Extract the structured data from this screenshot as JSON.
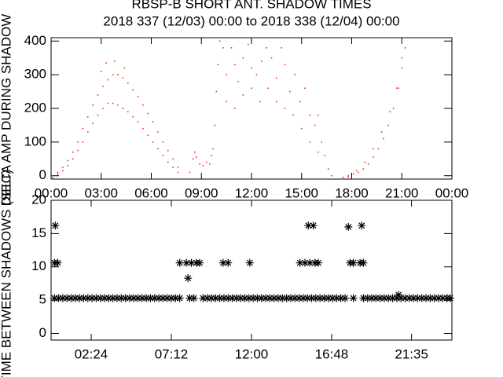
{
  "chart_data": [
    {
      "type": "scatter",
      "title": "RBSP-B SHORT ANT. SHADOW TIMES",
      "subtitle": "2018 337 (12/03) 00:00 to 2018 338 (12/04) 00:00",
      "y_label": "DELTA AMP DURING SHADOW",
      "color": "#e8321e",
      "xlim": [
        0,
        24
      ],
      "ylim": [
        -10,
        410
      ],
      "xticks": [
        {
          "value": 0,
          "label": "00:00"
        },
        {
          "value": 3,
          "label": "03:00"
        },
        {
          "value": 6,
          "label": "06:00"
        },
        {
          "value": 9,
          "label": "09:00"
        },
        {
          "value": 12,
          "label": "12:00"
        },
        {
          "value": 15,
          "label": "15:00"
        },
        {
          "value": 18,
          "label": "18:00"
        },
        {
          "value": 21,
          "label": "21:00"
        },
        {
          "value": 24,
          "label": "00:00"
        }
      ],
      "yticks": [
        0,
        100,
        200,
        300,
        400
      ],
      "x": [
        0.1,
        0.4,
        0.7,
        1.0,
        1.3,
        1.6,
        1.9,
        2.2,
        2.5,
        2.8,
        3.1,
        3.4,
        3.7,
        4.0,
        4.3,
        4.6,
        4.9,
        5.2,
        5.5,
        5.8,
        6.1,
        6.4,
        6.7,
        7.0,
        7.3,
        7.6,
        0.1,
        0.4,
        0.7,
        1.0,
        1.3,
        1.6,
        1.9,
        2.2,
        2.5,
        2.8,
        3.1,
        3.4,
        3.7,
        4.0,
        4.3,
        4.6,
        4.9,
        5.2,
        5.5,
        5.8,
        6.1,
        6.4,
        6.7,
        7.0,
        7.3,
        7.6,
        3.0,
        3.3,
        3.8,
        4.4,
        8.3,
        8.5,
        8.6,
        8.7,
        8.9,
        9.1,
        9.3,
        9.5,
        9.6,
        9.7,
        9.8,
        9.9,
        10.0,
        10.1,
        10.3,
        10.5,
        10.8,
        11.0,
        11.2,
        11.5,
        11.8,
        12.0,
        12.3,
        12.6,
        12.9,
        13.2,
        13.5,
        13.8,
        14.0,
        14.3,
        14.6,
        14.9,
        15.2,
        15.5,
        15.8,
        16.0,
        16.2,
        16.4,
        16.6,
        16.8,
        10.5,
        11.0,
        11.5,
        12.0,
        12.5,
        13.0,
        13.5,
        14.0,
        14.5,
        15.0,
        15.5,
        16.0,
        17.5,
        17.8,
        18.1,
        18.4,
        18.7,
        19.0,
        19.3,
        19.6,
        19.9,
        20.2,
        20.5,
        20.8,
        21.0,
        21.2,
        17.8,
        18.3,
        18.8,
        19.3,
        19.8,
        20.3,
        20.7,
        21.0
      ],
      "values": [
        -5,
        5,
        15,
        30,
        50,
        75,
        100,
        130,
        155,
        180,
        200,
        215,
        215,
        210,
        200,
        190,
        175,
        160,
        140,
        120,
        100,
        80,
        60,
        40,
        25,
        10,
        0,
        10,
        25,
        45,
        70,
        100,
        140,
        175,
        210,
        240,
        265,
        285,
        300,
        300,
        290,
        275,
        255,
        235,
        210,
        185,
        160,
        130,
        100,
        75,
        50,
        25,
        310,
        335,
        340,
        320,
        10,
        50,
        70,
        55,
        35,
        30,
        40,
        35,
        60,
        80,
        150,
        250,
        330,
        400,
        380,
        300,
        380,
        330,
        280,
        350,
        390,
        320,
        300,
        340,
        380,
        350,
        290,
        380,
        330,
        250,
        300,
        220,
        260,
        180,
        150,
        180,
        100,
        60,
        20,
        0,
        220,
        200,
        240,
        260,
        220,
        260,
        220,
        200,
        180,
        140,
        100,
        70,
        -5,
        0,
        5,
        10,
        20,
        35,
        55,
        80,
        110,
        150,
        200,
        260,
        320,
        380,
        -3,
        15,
        40,
        80,
        130,
        190,
        260,
        350
      ]
    },
    {
      "type": "asterisk",
      "y_label": "TIME BETWEEN SHADOWS (SEC)",
      "color": "#000000",
      "xlim": [
        0,
        24
      ],
      "ylim": [
        -1,
        20
      ],
      "xticks": [
        {
          "value": 2.4,
          "label": "02:24"
        },
        {
          "value": 7.2,
          "label": "07:12"
        },
        {
          "value": 12,
          "label": "12:00"
        },
        {
          "value": 16.8,
          "label": "16:48"
        },
        {
          "value": 21.583,
          "label": "21:35"
        }
      ],
      "yticks": [
        0,
        5,
        10,
        15,
        20
      ],
      "x": [
        0.2,
        0.45,
        0.7,
        0.95,
        1.2,
        1.45,
        1.7,
        1.95,
        2.2,
        2.45,
        2.7,
        2.95,
        3.2,
        3.45,
        3.7,
        3.95,
        4.2,
        4.45,
        4.7,
        4.95,
        5.2,
        5.45,
        5.7,
        5.95,
        6.2,
        6.45,
        6.7,
        6.95,
        7.2,
        7.45,
        7.7,
        8.3,
        8.55,
        9.1,
        9.35,
        9.6,
        9.85,
        10.1,
        10.35,
        10.6,
        10.85,
        11.1,
        11.35,
        11.6,
        11.85,
        12.1,
        12.35,
        12.6,
        12.85,
        13.1,
        13.35,
        13.6,
        13.85,
        14.1,
        14.35,
        14.6,
        14.85,
        15.1,
        15.35,
        15.6,
        15.85,
        16.1,
        16.35,
        16.6,
        16.85,
        17.1,
        17.35,
        17.6,
        18.1,
        18.7,
        18.95,
        19.2,
        19.45,
        19.7,
        19.95,
        20.2,
        20.45,
        20.7,
        20.95,
        21.2,
        21.45,
        21.7,
        21.95,
        22.2,
        22.45,
        22.7,
        22.95,
        23.2,
        23.45,
        23.7,
        23.9,
        0.2,
        0.4,
        0.25,
        7.7,
        8.2,
        8.1,
        8.4,
        8.7,
        8.9,
        10.3,
        10.6,
        11.9,
        14.9,
        15.2,
        15.4,
        15.5,
        15.7,
        15.8,
        16.0,
        17.8,
        17.9,
        18.1,
        18.6,
        18.5,
        18.7,
        20.8
      ],
      "values": [
        5.3,
        5.3,
        5.3,
        5.3,
        5.3,
        5.3,
        5.3,
        5.3,
        5.3,
        5.3,
        5.3,
        5.3,
        5.3,
        5.3,
        5.3,
        5.3,
        5.3,
        5.3,
        5.3,
        5.3,
        5.3,
        5.3,
        5.3,
        5.3,
        5.3,
        5.3,
        5.3,
        5.3,
        5.3,
        5.3,
        5.3,
        5.3,
        5.3,
        5.3,
        5.3,
        5.3,
        5.3,
        5.3,
        5.3,
        5.3,
        5.3,
        5.3,
        5.3,
        5.3,
        5.3,
        5.3,
        5.3,
        5.3,
        5.3,
        5.3,
        5.3,
        5.3,
        5.3,
        5.3,
        5.3,
        5.3,
        5.3,
        5.3,
        5.3,
        5.3,
        5.3,
        5.3,
        5.3,
        5.3,
        5.3,
        5.3,
        5.3,
        5.3,
        5.3,
        5.3,
        5.3,
        5.3,
        5.3,
        5.3,
        5.3,
        5.3,
        5.3,
        5.3,
        5.3,
        5.3,
        5.3,
        5.3,
        5.3,
        5.3,
        5.3,
        5.3,
        5.3,
        5.3,
        5.3,
        5.3,
        5.3,
        10.6,
        10.6,
        16.2,
        10.6,
        8.3,
        10.6,
        10.6,
        10.6,
        10.6,
        10.6,
        10.6,
        10.6,
        10.6,
        10.6,
        16.2,
        10.6,
        16.2,
        10.6,
        10.6,
        16.0,
        10.6,
        10.6,
        16.2,
        10.6,
        10.6,
        5.8
      ]
    }
  ]
}
